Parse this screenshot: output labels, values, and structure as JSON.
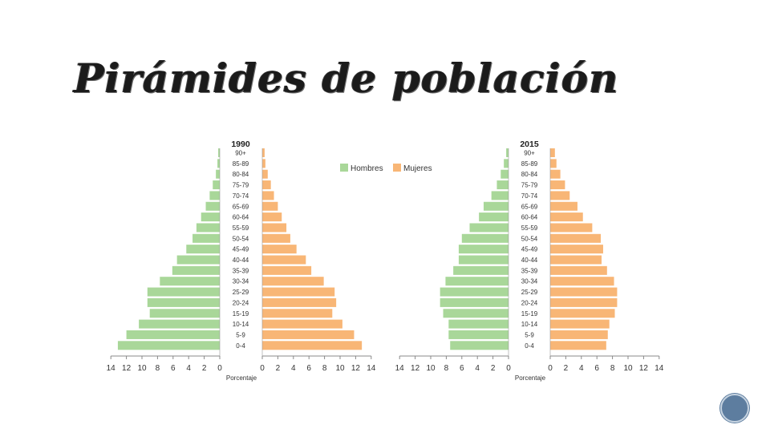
{
  "slide": {
    "title": "Pirámides de población"
  },
  "chart_data": {
    "type": "bar",
    "orientation": "horizontal",
    "legend": {
      "position": "top-center",
      "items": [
        "Hombres",
        "Mujeres"
      ]
    },
    "colors": {
      "Hombres": "#a9d799",
      "Mujeres": "#f8b676"
    },
    "xlabel": "Porcentaje",
    "xlim": [
      0,
      14
    ],
    "xticks": [
      "14",
      "12",
      "10",
      "8",
      "6",
      "4",
      "2",
      "0",
      "0",
      "2",
      "4",
      "6",
      "8",
      "10",
      "12",
      "14"
    ],
    "categories": [
      "90+",
      "85-89",
      "80-84",
      "75-79",
      "70-74",
      "65-69",
      "60-64",
      "55-59",
      "50-54",
      "45-49",
      "40-44",
      "35-39",
      "30-34",
      "25-29",
      "20-24",
      "15-19",
      "10-14",
      "5-9",
      "0-4"
    ],
    "pyramids": [
      {
        "year": "1990",
        "series": [
          {
            "name": "Hombres",
            "values": [
              0.2,
              0.3,
              0.5,
              0.9,
              1.3,
              1.8,
              2.4,
              3.0,
              3.5,
              4.3,
              5.5,
              6.1,
              7.7,
              9.3,
              9.3,
              9.0,
              10.4,
              12.0,
              13.1
            ]
          },
          {
            "name": "Mujeres",
            "values": [
              0.3,
              0.4,
              0.7,
              1.1,
              1.5,
              2.0,
              2.5,
              3.1,
              3.6,
              4.4,
              5.6,
              6.3,
              7.9,
              9.3,
              9.5,
              9.0,
              10.3,
              11.8,
              12.8
            ]
          }
        ]
      },
      {
        "year": "2015",
        "series": [
          {
            "name": "Hombres",
            "values": [
              0.3,
              0.6,
              1.0,
              1.5,
              2.2,
              3.2,
              3.8,
              5.0,
              6.0,
              6.4,
              6.4,
              7.1,
              8.1,
              8.8,
              8.8,
              8.4,
              7.7,
              7.7,
              7.5
            ]
          },
          {
            "name": "Mujeres",
            "values": [
              0.6,
              0.8,
              1.3,
              1.9,
              2.5,
              3.5,
              4.2,
              5.4,
              6.5,
              6.8,
              6.6,
              7.3,
              8.2,
              8.6,
              8.6,
              8.3,
              7.6,
              7.4,
              7.2
            ]
          }
        ]
      }
    ]
  }
}
